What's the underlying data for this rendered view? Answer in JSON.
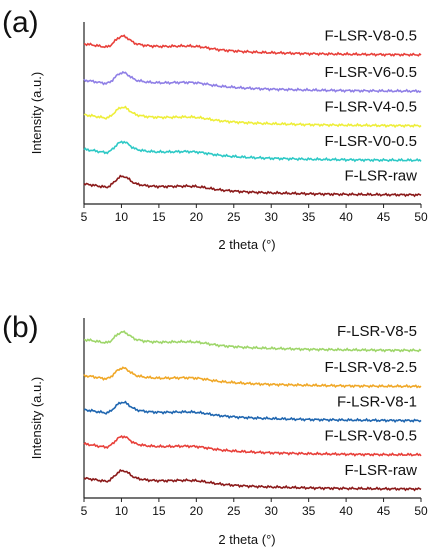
{
  "chart_data": [
    {
      "panel": "(a)",
      "type": "line",
      "xlabel": "2 theta (°)",
      "ylabel": "Intensity (a.u.)",
      "xlim": [
        5,
        50
      ],
      "xticks": [
        5,
        10,
        15,
        20,
        25,
        30,
        35,
        40,
        45,
        50
      ],
      "ylim": [
        0,
        1
      ],
      "yticks": false,
      "grid": false,
      "legend": "inline labels above curves",
      "series": [
        {
          "name": "F-LSR-V8-0.5",
          "color": "#e8403a",
          "offset": 0.84
        },
        {
          "name": "F-LSR-V6-0.5",
          "color": "#8f7fe6",
          "offset": 0.64
        },
        {
          "name": "F-LSR-V4-0.5",
          "color": "#eeee3a",
          "offset": 0.45
        },
        {
          "name": "F-LSR-V0-0.5",
          "color": "#2ec9c6",
          "offset": 0.26
        },
        {
          "name": "F-LSR-raw",
          "color": "#8b1a1a",
          "offset": 0.07
        }
      ],
      "profile": {
        "x": [
          5,
          6,
          7,
          8,
          8.5,
          9,
          9.5,
          10,
          10.5,
          11,
          11.5,
          12,
          13,
          14,
          15,
          16,
          17,
          18,
          19,
          20,
          21,
          22,
          23,
          24,
          25,
          26,
          28,
          30,
          35,
          40,
          45,
          50
        ],
        "y": [
          0.04,
          0.035,
          0.028,
          0.022,
          0.03,
          0.05,
          0.07,
          0.082,
          0.08,
          0.066,
          0.05,
          0.04,
          0.032,
          0.028,
          0.026,
          0.026,
          0.027,
          0.028,
          0.028,
          0.026,
          0.021,
          0.014,
          0.008,
          0.004,
          0.001,
          -0.002,
          -0.006,
          -0.009,
          -0.014,
          -0.017,
          -0.019,
          -0.02
        ]
      }
    },
    {
      "panel": "(b)",
      "type": "line",
      "xlabel": "2 theta (°)",
      "ylabel": "Intensity (a.u.)",
      "xlim": [
        5,
        50
      ],
      "xticks": [
        5,
        10,
        15,
        20,
        25,
        30,
        35,
        40,
        45,
        50
      ],
      "ylim": [
        0,
        1
      ],
      "yticks": false,
      "grid": false,
      "legend": "inline labels above curves",
      "series": [
        {
          "name": "F-LSR-V8-5",
          "color": "#9ed66a",
          "offset": 0.84
        },
        {
          "name": "F-LSR-V8-2.5",
          "color": "#f0a828",
          "offset": 0.64
        },
        {
          "name": "F-LSR-V8-1",
          "color": "#1f66b0",
          "offset": 0.45
        },
        {
          "name": "F-LSR-V8-0.5",
          "color": "#e8403a",
          "offset": 0.26
        },
        {
          "name": "F-LSR-raw",
          "color": "#8b1a1a",
          "offset": 0.07
        }
      ],
      "profile": {
        "x": [
          5,
          6,
          7,
          8,
          8.5,
          9,
          9.5,
          10,
          10.5,
          11,
          11.5,
          12,
          13,
          14,
          15,
          16,
          17,
          18,
          19,
          20,
          21,
          22,
          23,
          24,
          25,
          26,
          28,
          30,
          35,
          40,
          45,
          50
        ],
        "y": [
          0.04,
          0.035,
          0.028,
          0.022,
          0.03,
          0.05,
          0.07,
          0.082,
          0.08,
          0.066,
          0.05,
          0.04,
          0.032,
          0.028,
          0.026,
          0.026,
          0.027,
          0.028,
          0.028,
          0.026,
          0.021,
          0.014,
          0.008,
          0.004,
          0.001,
          -0.002,
          -0.006,
          -0.009,
          -0.014,
          -0.017,
          -0.019,
          -0.02
        ]
      }
    }
  ]
}
